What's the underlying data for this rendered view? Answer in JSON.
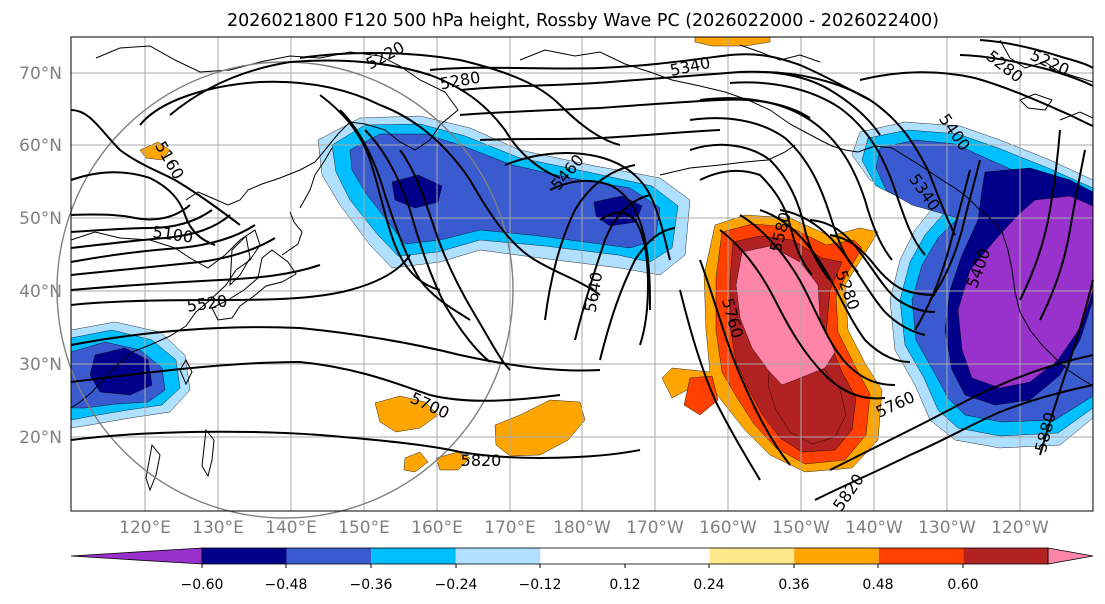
{
  "title": "2026021800 F120 500 hPa height, Rossby Wave PC (2026022000 - 2026022400)",
  "colors": {
    "lows": [
      "#9932cc",
      "#00008b",
      "#3a5bd0",
      "#00bfff",
      "#b0e0ff"
    ],
    "highs": [
      "#ffe98a",
      "#ffa500",
      "#ff4000",
      "#b22222",
      "#ff85a8"
    ],
    "contour": "#000000",
    "grid": "#a9a9a9",
    "coast": "#000000",
    "circle": "#808080"
  },
  "map": {
    "lat_labels": [
      "70°N",
      "60°N",
      "50°N",
      "40°N",
      "30°N",
      "20°N"
    ],
    "lon_labels": [
      "120°E",
      "130°E",
      "140°E",
      "150°E",
      "160°E",
      "170°E",
      "180°W",
      "170°W",
      "160°W",
      "150°W",
      "140°W",
      "130°W",
      "120°W"
    ],
    "lat_range": [
      10,
      75
    ],
    "lon_range": [
      110,
      250
    ]
  },
  "contour_labels": [
    "5220",
    "5280",
    "5340",
    "5280",
    "5220",
    "5160",
    "5100",
    "5520",
    "5460",
    "5400",
    "5340",
    "5580",
    "5640",
    "5760",
    "5280",
    "5400",
    "5700",
    "5820",
    "5760",
    "5820",
    "5880"
  ],
  "colorbar": {
    "ticks": [
      "−0.60",
      "−0.48",
      "−0.36",
      "−0.24",
      "−0.12",
      "0.12",
      "0.24",
      "0.36",
      "0.48",
      "0.60"
    ]
  }
}
